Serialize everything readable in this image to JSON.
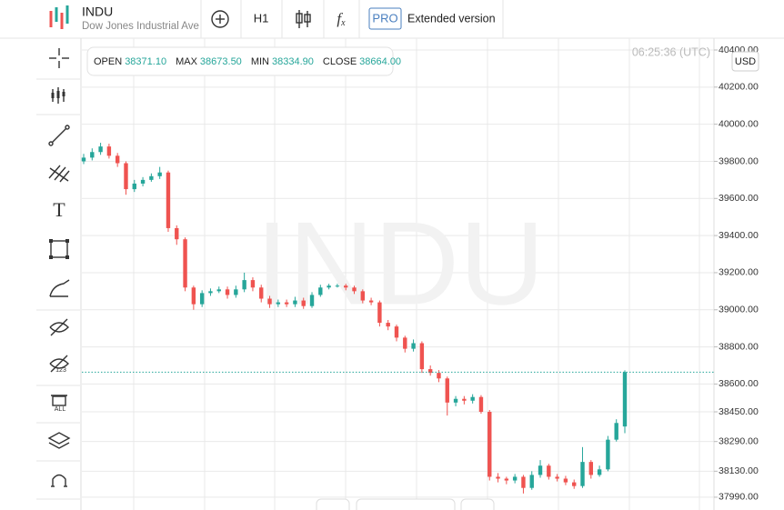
{
  "header": {
    "symbol": "INDU",
    "description": "Dow Jones Industrial Ave",
    "timeframe": "H1",
    "pro_badge": "PRO",
    "extended": "Extended version"
  },
  "info_box": [
    {
      "label": "OPEN",
      "value": "38371.10"
    },
    {
      "label": "MAX",
      "value": "38673.50"
    },
    {
      "label": "MIN",
      "value": "38334.90"
    },
    {
      "label": "CLOSE",
      "value": "38664.00"
    }
  ],
  "clock": "06:25:36 (UTC)",
  "currency": "USD",
  "watermark": "INDU",
  "chart_data": {
    "type": "candlestick",
    "up_color": "#26a69a",
    "down_color": "#ef5350",
    "grid": true,
    "ylim": [
      37921,
      40449
    ],
    "yticks": [
      {
        "value": 40400,
        "label": "40400.00"
      },
      {
        "value": 40200,
        "label": "40200.00"
      },
      {
        "value": 40000,
        "label": "40000.00"
      },
      {
        "value": 39800,
        "label": "39800.00"
      },
      {
        "value": 39600,
        "label": "39600.00"
      },
      {
        "value": 39400,
        "label": "39400.00"
      },
      {
        "value": 39200,
        "label": "39200.00"
      },
      {
        "value": 39000,
        "label": "39000.00"
      },
      {
        "value": 38800,
        "label": "38800.00"
      },
      {
        "value": 38600,
        "label": "38600.00"
      },
      {
        "value": 38450,
        "label": "38450.00"
      },
      {
        "value": 38290,
        "label": "38290.00"
      },
      {
        "value": 38130,
        "label": "38130.00"
      },
      {
        "value": 37990,
        "label": "37990.00"
      }
    ],
    "open": [
      39800,
      39820,
      39850,
      39880,
      39830,
      39790,
      39650,
      39680,
      39700,
      39720,
      39740,
      39440,
      39380,
      39120,
      39030,
      39090,
      39100,
      39110,
      39080,
      39110,
      39160,
      39120,
      39060,
      39030,
      39040,
      39030,
      39050,
      39020,
      39080,
      39120,
      39130,
      39130,
      39120,
      39100,
      39050,
      39040,
      38930,
      38910,
      38850,
      38790,
      38820,
      38680,
      38660,
      38630,
      38500,
      38520,
      38510,
      38530,
      38450,
      38100,
      38090,
      38080,
      38100,
      38040,
      38110,
      38160,
      38100,
      38090,
      38070,
      38050,
      38180,
      38110,
      38140,
      38300,
      38371.1
    ],
    "high": [
      39840,
      39870,
      39900,
      39895,
      39845,
      39800,
      39700,
      39715,
      39735,
      39770,
      39750,
      39455,
      39390,
      39130,
      39105,
      39115,
      39125,
      39125,
      39130,
      39200,
      39175,
      39135,
      39075,
      39055,
      39055,
      39070,
      39065,
      39095,
      39135,
      39140,
      39140,
      39140,
      39130,
      39110,
      39065,
      39050,
      38945,
      38920,
      38860,
      38840,
      38830,
      38700,
      38675,
      38640,
      38535,
      38535,
      38545,
      38540,
      38460,
      38120,
      38100,
      38115,
      38110,
      38130,
      38190,
      38170,
      38115,
      38105,
      38085,
      38260,
      38190,
      38160,
      38320,
      38410,
      38673.5
    ],
    "low": [
      39785,
      39805,
      39835,
      39815,
      39770,
      39620,
      39635,
      39665,
      39690,
      39705,
      39420,
      39350,
      39100,
      39000,
      39015,
      39075,
      39090,
      39060,
      39065,
      39095,
      39100,
      39040,
      39010,
      39015,
      39015,
      39015,
      39005,
      39010,
      39070,
      39110,
      39120,
      39105,
      39085,
      39035,
      39025,
      38910,
      38890,
      38830,
      38770,
      38775,
      38660,
      38645,
      38610,
      38430,
      38480,
      38490,
      38495,
      38440,
      38080,
      38070,
      38060,
      38065,
      38010,
      38030,
      38095,
      38085,
      38075,
      38055,
      38035,
      38040,
      38090,
      38100,
      38130,
      38290,
      38334.9
    ],
    "close": [
      39820,
      39850,
      39880,
      39830,
      39790,
      39650,
      39680,
      39700,
      39720,
      39740,
      39440,
      39380,
      39120,
      39030,
      39090,
      39100,
      39110,
      39080,
      39110,
      39160,
      39120,
      39060,
      39030,
      39040,
      39030,
      39050,
      39020,
      39080,
      39120,
      39130,
      39130,
      39120,
      39100,
      39050,
      39040,
      38930,
      38910,
      38850,
      38790,
      38820,
      38680,
      38660,
      38630,
      38500,
      38520,
      38510,
      38530,
      38450,
      38100,
      38090,
      38080,
      38100,
      38040,
      38110,
      38160,
      38100,
      38090,
      38070,
      38050,
      38180,
      38110,
      38140,
      38300,
      38390,
      38664
    ]
  }
}
